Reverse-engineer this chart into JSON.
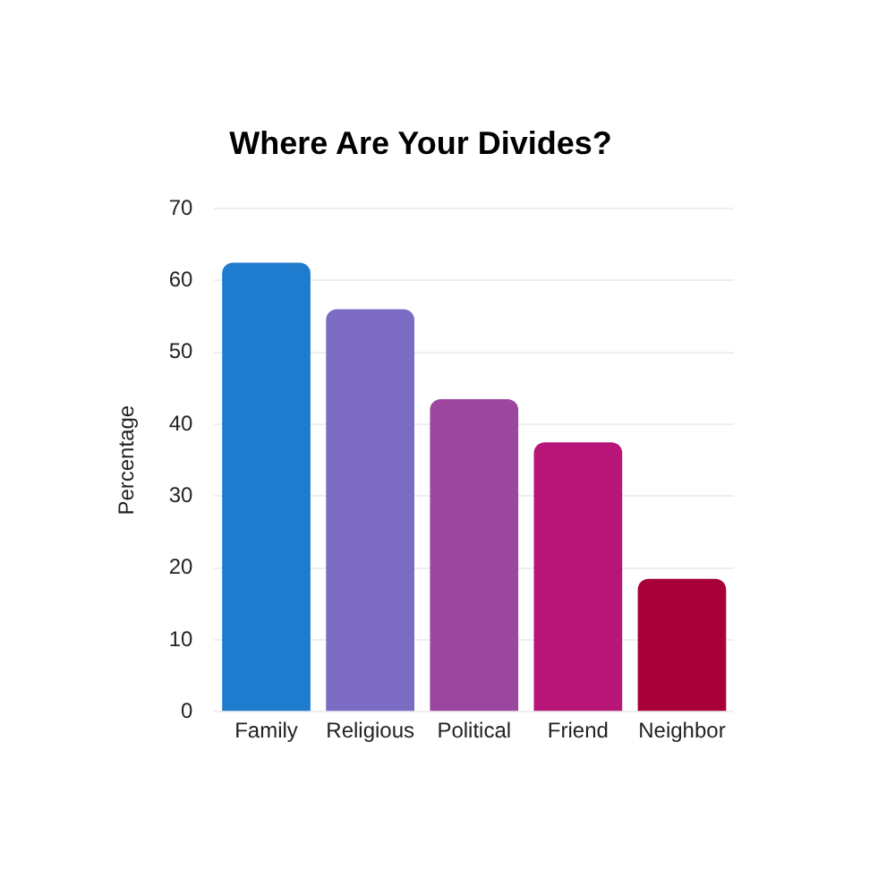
{
  "chart_data": {
    "type": "bar",
    "title": "Where Are Your Divides?",
    "ylabel": "Percentage",
    "categories": [
      "Family",
      "Religious",
      "Political",
      "Friend",
      "Neighbor"
    ],
    "values": [
      62.5,
      56,
      43.5,
      37.5,
      18.5
    ],
    "colors": [
      "#1f7bcd",
      "#7b6bc2",
      "#9c46a0",
      "#b71577",
      "#a70038"
    ],
    "ylim": [
      0,
      70
    ],
    "yticks": [
      0,
      10,
      20,
      30,
      40,
      50,
      60,
      70
    ],
    "grid": "y"
  }
}
